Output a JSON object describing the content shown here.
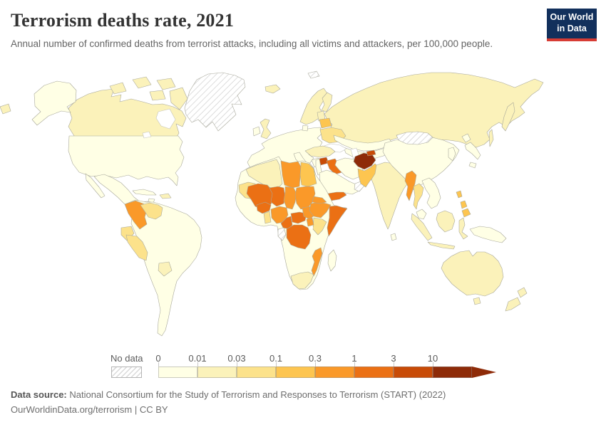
{
  "header": {
    "title": "Terrorism deaths rate, 2021",
    "subtitle": "Annual number of confirmed deaths from terrorist attacks, including all victims and attackers, per 100,000 people.",
    "logo_line1": "Our World",
    "logo_line2": "in Data",
    "logo_bg": "#12305c",
    "logo_accent": "#d73c34"
  },
  "legend": {
    "no_data_label": "No data"
  },
  "footer": {
    "source_label": "Data source:",
    "source_text": " National Consortium for the Study of Terrorism and Responses to Terrorism (START) (2022)",
    "license_line": "OurWorldinData.org/terrorism | CC BY"
  },
  "chart_data": {
    "type": "heatmap",
    "subtype": "choropleth-world-map",
    "title": "Terrorism deaths rate, 2021",
    "unit": "deaths per 100,000 people",
    "legend_position": "bottom",
    "bin_edges": [
      "0",
      "0.01",
      "0.03",
      "0.1",
      "0.3",
      "1",
      "3",
      "10"
    ],
    "bin_colors": [
      "#ffffe5",
      "#fbf2ba",
      "#fce28b",
      "#fdc550",
      "#fa9929",
      "#eb7014",
      "#c84b07",
      "#8e2b08"
    ],
    "no_data_regions": [
      "Greenland",
      "Mongolia",
      "Oman",
      "Gabon/Equatorial Guinea",
      "Svalbard"
    ],
    "highlighted_values": {
      "Afghanistan": "10+",
      "Mali": "1-3",
      "Niger": "1-3",
      "Burkina Faso": "1-3",
      "Somalia": "1-3",
      "Yemen": "1-3",
      "Iraq": "1-3",
      "Syria": "3-10",
      "Tajikistan": "3-10",
      "DR Congo": "1-3",
      "Cameroon": "1-3",
      "Central African Republic": "1-3",
      "Nigeria": "0.3-1",
      "Chad": "0.3-1",
      "Sudan": "0.3-1",
      "South Sudan": "0.3-1",
      "Ethiopia": "0.3-1",
      "Eritrea": "0.3-1",
      "Uganda": "0.3-1",
      "Mozambique": "0.3-1",
      "Libya": "0.3-1",
      "Myanmar": "0.3-1",
      "Colombia": "0.3-1",
      "Egypt": "0.1-0.3",
      "Pakistan": "0.1-0.3",
      "Philippines": "0.1-0.3",
      "Belarus": "0.1-0.3",
      "Honduras": "0.1-0.3",
      "Kenya": "0.03-0.1",
      "Thailand": "0.03-0.1",
      "Ukraine": "0.03-0.1",
      "Venezuela": "0.03-0.1",
      "Peru": "0.03-0.1",
      "Ecuador": "0.03-0.1",
      "Benin/Togo": "0.03-0.1",
      "Mauritania": "0.03-0.1",
      "Canada": "0.01-0.03",
      "Russia": "0.01-0.03",
      "India": "0.01-0.03",
      "Australia": "0.01-0.03",
      "United States": "0-0.01",
      "Brazil": "0-0.01",
      "China": "0-0.01",
      "Most of Europe": "0-0.01"
    }
  },
  "map": {
    "bins": [
      {
        "label": "0",
        "color": "#ffffe5"
      },
      {
        "label": "0.01",
        "color": "#fbf2ba"
      },
      {
        "label": "0.03",
        "color": "#fce28b"
      },
      {
        "label": "0.1",
        "color": "#fdc550"
      },
      {
        "label": "0.3",
        "color": "#fa9929"
      },
      {
        "label": "1",
        "color": "#eb7014"
      },
      {
        "label": "3",
        "color": "#c84b07"
      },
      {
        "label": "10",
        "color": "#8e2b08"
      }
    ],
    "no_data_pattern_color": "#cdcdcd",
    "countries": {
      "greenland": -1,
      "canada": 1,
      "usa": 0,
      "mexico": 0,
      "central_america": 0,
      "honduras": 3,
      "cuba": 0,
      "jamaica": 0,
      "hispaniola": 1,
      "south_america": 0,
      "colombia": 4,
      "venezuela": 2,
      "ecuador": 2,
      "peru": 2,
      "paraguay": 1,
      "europe": 0,
      "italy": 0,
      "greece": 0,
      "denmark": 0,
      "baltics": 1,
      "scandinavia": 1,
      "finland": 1,
      "iceland": 1,
      "uk": 1,
      "ireland": 0,
      "belarus": 3,
      "ukraine": 2,
      "russia": 1,
      "svalbard": -1,
      "kazakhstan": 0,
      "central_asia": 0,
      "tajikistan": 6,
      "turkey": 1,
      "syria": 6,
      "iraq": 5,
      "levant": 0,
      "iran": 0,
      "arabia": 0,
      "yemen": 5,
      "oman": -1,
      "afghanistan": 7,
      "pakistan": 3,
      "india": 1,
      "sri_lanka": 0,
      "bangladesh": 1,
      "china": 0,
      "mongolia": -1,
      "korea": 0,
      "japan": 0,
      "myanmar": 4,
      "thailand": 2,
      "indochina": 0,
      "malaysia": 0,
      "indonesia": 1,
      "new_guinea": 0,
      "philippines": 3,
      "australia": 1,
      "new_zealand": 1,
      "africa": 0,
      "madagascar": 0,
      "algeria": 1,
      "libya": 4,
      "egypt": 3,
      "mauritania": 2,
      "mali": 5,
      "niger": 5,
      "chad": 4,
      "sudan": 4,
      "south_sudan": 4,
      "burkina_faso": 5,
      "benin_togo": 2,
      "nigeria": 4,
      "cameroon": 5,
      "central_african_republic": 5,
      "ethiopia": 4,
      "eritrea": 4,
      "somalia": 5,
      "kenya": 2,
      "uganda": 4,
      "drc": 5,
      "mozambique": 4,
      "south_africa": 1,
      "gabon": -1
    }
  }
}
